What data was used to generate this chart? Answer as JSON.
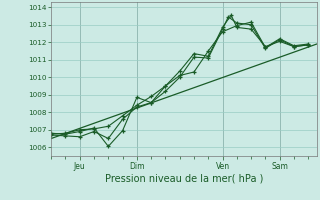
{
  "title": "",
  "xlabel": "Pression niveau de la mer( hPa )",
  "ylabel": "",
  "background_color": "#cceae4",
  "grid_color": "#99ccc4",
  "line_color": "#1a5c28",
  "ylim": [
    1005.5,
    1014.3
  ],
  "xlim": [
    0.0,
    9.3
  ],
  "xtick_positions": [
    1,
    3,
    6,
    8
  ],
  "xtick_labels": [
    "Jeu",
    "Dim",
    "Ven",
    "Sam"
  ],
  "ytick_positions": [
    1006,
    1007,
    1008,
    1009,
    1010,
    1011,
    1012,
    1013,
    1014
  ],
  "line1_x": [
    0.0,
    0.5,
    1.0,
    1.5,
    2.0,
    2.5,
    3.0,
    3.5,
    4.0,
    4.5,
    5.0,
    5.5,
    6.0,
    6.2,
    6.5,
    7.0,
    7.5,
    8.0,
    8.5,
    9.0
  ],
  "line1_y": [
    1006.7,
    1006.65,
    1006.6,
    1006.9,
    1006.5,
    1007.6,
    1008.3,
    1008.55,
    1009.2,
    1010.0,
    1011.15,
    1011.1,
    1012.75,
    1013.45,
    1013.1,
    1013.0,
    1011.65,
    1012.15,
    1011.75,
    1011.85
  ],
  "line2_x": [
    0.0,
    0.5,
    1.0,
    1.5,
    2.0,
    2.5,
    3.0,
    3.5,
    4.0,
    4.5,
    5.0,
    5.5,
    6.0,
    6.3,
    6.5,
    7.0,
    7.5,
    8.0,
    8.5,
    9.0
  ],
  "line2_y": [
    1006.8,
    1006.75,
    1006.9,
    1007.1,
    1006.05,
    1006.95,
    1008.85,
    1008.55,
    1009.5,
    1010.35,
    1011.35,
    1011.2,
    1012.85,
    1013.55,
    1012.85,
    1012.75,
    1011.75,
    1012.05,
    1011.75,
    1011.85
  ],
  "line3_x": [
    0.0,
    9.3
  ],
  "line3_y": [
    1006.5,
    1011.9
  ],
  "line4_x": [
    0.0,
    0.5,
    1.0,
    1.5,
    2.0,
    2.5,
    3.0,
    3.5,
    4.0,
    4.5,
    5.0,
    5.5,
    6.0,
    6.5,
    7.0,
    7.5,
    8.0,
    8.5,
    9.0
  ],
  "line4_y": [
    1006.75,
    1006.8,
    1007.0,
    1007.05,
    1007.2,
    1007.8,
    1008.4,
    1008.9,
    1009.5,
    1010.1,
    1010.3,
    1011.5,
    1012.6,
    1012.95,
    1013.15,
    1011.7,
    1012.2,
    1011.8,
    1011.9
  ]
}
